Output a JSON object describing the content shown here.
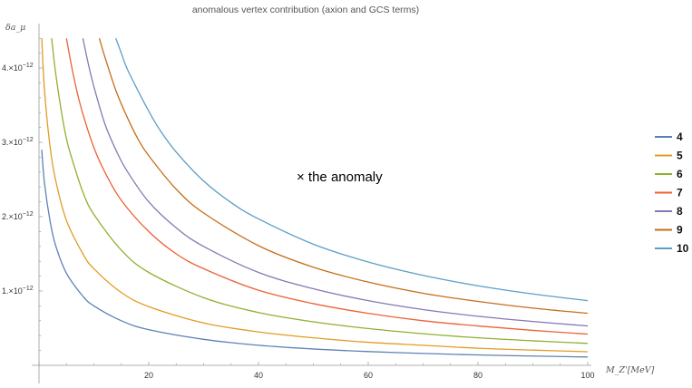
{
  "chart_data": {
    "type": "line",
    "title": "anomalous vertex contribution (axion and GCS terms)",
    "xlabel": "M_Z'[MeV]",
    "ylabel": "δa_μ",
    "xlim": [
      0,
      100
    ],
    "ylim": [
      0,
      4.5e-12
    ],
    "x_ticks": [
      20,
      40,
      60,
      80,
      100
    ],
    "y_ticks": [
      {
        "value": 1e-12,
        "label": "1.×10^−12"
      },
      {
        "value": 2e-12,
        "label": "2.×10^−12"
      },
      {
        "value": 3e-12,
        "label": "3.×10^−12"
      },
      {
        "value": 4e-12,
        "label": "4.×10^−12"
      }
    ],
    "annotation": {
      "x": 50,
      "y": 2.68e-12,
      "text": "× the anomaly"
    },
    "legend_position": "right",
    "grid": false,
    "series": [
      {
        "name": "4",
        "color": "#5e81b5",
        "x": [
          0.5,
          1,
          2,
          3,
          5,
          8,
          10,
          15,
          20,
          30,
          40,
          50,
          60,
          70,
          80,
          90,
          100
        ],
        "y": [
          2.9e-12,
          2.45e-12,
          1.95e-12,
          1.62e-12,
          1.24e-12,
          9.3e-13,
          8e-13,
          6e-13,
          4.8e-13,
          3.5e-13,
          2.7e-13,
          2.2e-13,
          1.85e-13,
          1.6e-13,
          1.4e-13,
          1.25e-13,
          1.12e-13
        ]
      },
      {
        "name": "5",
        "color": "#e19c24",
        "x": [
          0.5,
          1,
          2,
          3,
          5,
          8,
          10,
          15,
          20,
          30,
          40,
          50,
          60,
          70,
          80,
          90,
          100
        ],
        "y": [
          4.4e-12,
          3.7e-12,
          2.95e-12,
          2.5e-12,
          1.95e-12,
          1.5e-12,
          1.3e-12,
          9.8e-13,
          7.9e-13,
          5.7e-13,
          4.5e-13,
          3.7e-13,
          3.1e-13,
          2.7e-13,
          2.3e-13,
          2.05e-13,
          1.83e-13
        ]
      },
      {
        "name": "6",
        "color": "#8fb032",
        "x": [
          2.3,
          3,
          4,
          5,
          6,
          8,
          10,
          15,
          20,
          30,
          40,
          50,
          60,
          70,
          80,
          90,
          100
        ],
        "y": [
          4.4e-12,
          3.95e-12,
          3.45e-12,
          3.05e-12,
          2.78e-12,
          2.33e-12,
          2.03e-12,
          1.55e-12,
          1.25e-12,
          9.1e-13,
          7.1e-13,
          5.85e-13,
          4.95e-13,
          4.25e-13,
          3.7e-13,
          3.3e-13,
          2.95e-13
        ]
      },
      {
        "name": "7",
        "color": "#eb6235",
        "x": [
          5,
          6,
          7,
          8,
          10,
          12,
          15,
          20,
          25,
          30,
          40,
          50,
          60,
          70,
          80,
          90,
          100
        ],
        "y": [
          4.4e-12,
          4e-12,
          3.66e-12,
          3.38e-12,
          2.93e-12,
          2.6e-12,
          2.22e-12,
          1.8e-12,
          1.5e-12,
          1.3e-12,
          1.01e-12,
          8.3e-13,
          7e-13,
          6e-13,
          5.3e-13,
          4.7e-13,
          4.2e-13
        ]
      },
      {
        "name": "8",
        "color": "#8778b3",
        "x": [
          8,
          9,
          10,
          12,
          14,
          16,
          20,
          25,
          30,
          40,
          50,
          60,
          70,
          80,
          90,
          100
        ],
        "y": [
          4.4e-12,
          4.05e-12,
          3.75e-12,
          3.25e-12,
          2.9e-12,
          2.62e-12,
          2.2e-12,
          1.85e-12,
          1.6e-12,
          1.25e-12,
          1.03e-12,
          8.7e-13,
          7.5e-13,
          6.6e-13,
          5.9e-13,
          5.3e-13
        ]
      },
      {
        "name": "9",
        "color": "#c56e1a",
        "x": [
          11,
          12,
          14,
          16,
          18,
          20,
          25,
          30,
          40,
          50,
          60,
          70,
          80,
          90,
          100
        ],
        "y": [
          4.4e-12,
          4.15e-12,
          3.7e-12,
          3.35e-12,
          3.05e-12,
          2.82e-12,
          2.37e-12,
          2.05e-12,
          1.61e-12,
          1.32e-12,
          1.12e-12,
          9.7e-13,
          8.6e-13,
          7.7e-13,
          7e-13
        ]
      },
      {
        "name": "10",
        "color": "#5d9ec7",
        "x": [
          14,
          15,
          16,
          18,
          20,
          22,
          25,
          30,
          35,
          40,
          50,
          60,
          70,
          80,
          90,
          100
        ],
        "y": [
          4.4e-12,
          4.2e-12,
          4e-12,
          3.7e-12,
          3.42e-12,
          3.17e-12,
          2.87e-12,
          2.48e-12,
          2.19e-12,
          1.97e-12,
          1.63e-12,
          1.39e-12,
          1.21e-12,
          1.07e-12,
          9.6e-13,
          8.7e-13
        ]
      }
    ]
  }
}
